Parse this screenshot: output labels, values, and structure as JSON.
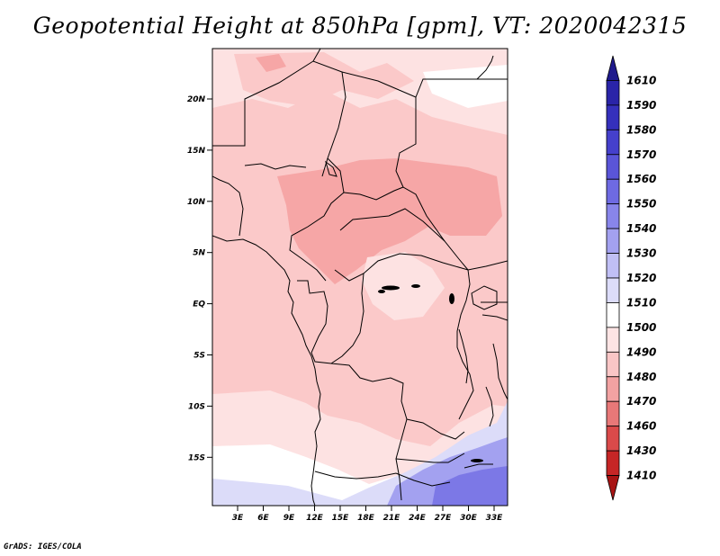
{
  "title": "Geopotential Height at 850hPa [gpm], VT: 2020042315",
  "footer": "GrADS: IGES/COLA",
  "y_axis_labels": [
    "20N",
    "15N",
    "10N",
    "5N",
    "EQ",
    "5S",
    "10S",
    "15S"
  ],
  "x_axis_labels": [
    "3E",
    "6E",
    "9E",
    "12E",
    "15E",
    "18E",
    "21E",
    "24E",
    "27E",
    "30E",
    "33E"
  ],
  "colorbar": {
    "labels": [
      "1610",
      "1590",
      "1580",
      "1570",
      "1560",
      "1550",
      "1540",
      "1530",
      "1520",
      "1510",
      "1500",
      "1490",
      "1480",
      "1470",
      "1460",
      "1430",
      "1410"
    ],
    "colors": [
      "#1f1a8c",
      "#2a24a8",
      "#3530bc",
      "#4540cc",
      "#5a55d8",
      "#6e6ae2",
      "#8885ea",
      "#a3a1f0",
      "#c0bff5",
      "#dcdcf9",
      "#ffffff",
      "#fde4e4",
      "#f9c6c6",
      "#f2a2a2",
      "#e87878",
      "#da4a4a",
      "#c62626",
      "#a81414"
    ]
  },
  "map_colors": {
    "light_pink": "#fde2e2",
    "pink": "#fbc9c9",
    "rose": "#f6a6a6",
    "white": "#ffffff",
    "pale_blue": "#dcdcf9",
    "blue": "#a3a1f0",
    "deep_blue": "#7c78e6"
  }
}
